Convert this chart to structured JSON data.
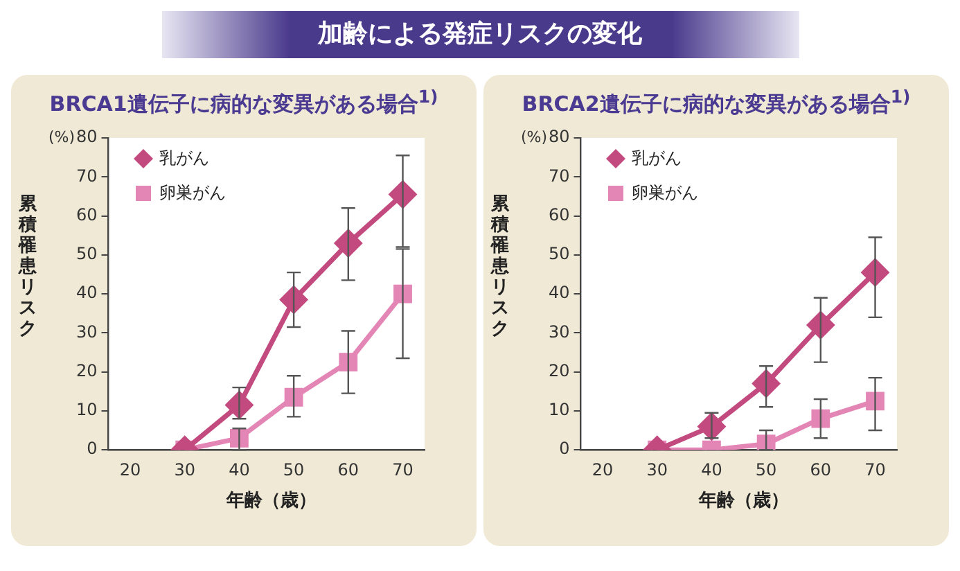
{
  "chart_data": [
    {
      "type": "other",
      "title": "加齢による発症リスクの変化"
    },
    {
      "type": "line",
      "title": "BRCA1遺伝子に病的な変異がある場合$^{1)}$",
      "xlabel": "年齢（歳）",
      "ylabel": "累積罹患リスク",
      "annotations": [
        "(%)"
      ],
      "x": [
        30,
        40,
        50,
        60,
        70
      ],
      "xlim": [
        16,
        74
      ],
      "xticks": [
        20,
        30,
        40,
        50,
        60,
        70
      ],
      "ylim": [
        0,
        80
      ],
      "yticks": [
        0,
        10,
        20,
        30,
        40,
        50,
        60,
        70,
        80
      ],
      "grid": false,
      "legend": "top left",
      "series": [
        {
          "name": "乳がん",
          "color": "#c24a7e",
          "marker": "diamond",
          "values": [
            0,
            11.5,
            38.5,
            53,
            65.5
          ],
          "errors": [
            null,
            [
              8,
              16
            ],
            [
              31.5,
              45.5
            ],
            [
              43.5,
              62
            ],
            [
              52,
              75.5
            ]
          ]
        },
        {
          "name": "卵巣がん",
          "color": "#e386b6",
          "marker": "square",
          "values": [
            0,
            3,
            13.5,
            22.5,
            40
          ],
          "errors": [
            null,
            [
              0,
              5.5
            ],
            [
              8.5,
              19
            ],
            [
              14.5,
              30.5
            ],
            [
              23.5,
              51.5
            ]
          ]
        }
      ]
    },
    {
      "type": "line",
      "title": "BRCA2遺伝子に病的な変異がある場合$^{1)}$",
      "xlabel": "年齢（歳）",
      "ylabel": "累積罹患リスク",
      "annotations": [
        "(%)"
      ],
      "x": [
        30,
        40,
        50,
        60,
        70
      ],
      "xlim": [
        16,
        74
      ],
      "xticks": [
        20,
        30,
        40,
        50,
        60,
        70
      ],
      "ylim": [
        0,
        80
      ],
      "yticks": [
        0,
        10,
        20,
        30,
        40,
        50,
        60,
        70,
        80
      ],
      "grid": false,
      "legend": "top left",
      "series": [
        {
          "name": "乳がん",
          "color": "#c24a7e",
          "marker": "diamond",
          "values": [
            0,
            6,
            17,
            32,
            45.5
          ],
          "errors": [
            null,
            [
              3,
              9.5
            ],
            [
              11,
              21.5
            ],
            [
              22.5,
              39
            ],
            [
              34,
              54.5
            ]
          ]
        },
        {
          "name": "卵巣がん",
          "color": "#e386b6",
          "marker": "square",
          "values": [
            0,
            0,
            1.5,
            8,
            12.5
          ],
          "errors": [
            null,
            null,
            [
              0,
              5
            ],
            [
              3,
              13
            ],
            [
              5,
              18.5
            ]
          ]
        }
      ]
    }
  ]
}
